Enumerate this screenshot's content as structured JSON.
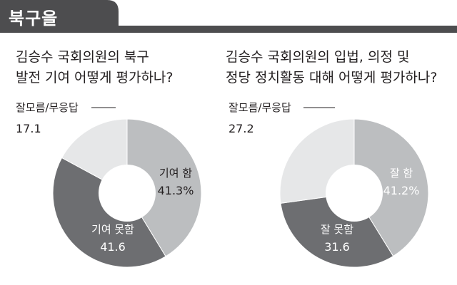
{
  "header": {
    "region": "북구을"
  },
  "chart_data": [
    {
      "type": "pie",
      "title_lines": [
        "김승수 국회의원의 북구",
        "발전 기여 어떻게 평가하나?"
      ],
      "categories": [
        "기여 함",
        "기여 못함",
        "잘모름/무응답"
      ],
      "values": [
        41.3,
        41.6,
        17.1
      ],
      "value_labels": [
        "41.3%",
        "41.6",
        "17.1"
      ],
      "colors": [
        "#bcbec0",
        "#6d6e71",
        "#e6e7e8"
      ],
      "label_colors": [
        "#231f20",
        "#ffffff",
        "#231f20"
      ]
    },
    {
      "type": "pie",
      "title_lines": [
        "김승수 국회의원의 입법, 의정 및",
        "정당 정치활동 대해 어떻게 평가하나?"
      ],
      "categories": [
        "잘 함",
        "잘 못함",
        "잘모름/무응답"
      ],
      "values": [
        41.2,
        31.6,
        27.2
      ],
      "value_labels": [
        "41.2%",
        "31.6",
        "27.2"
      ],
      "colors": [
        "#bcbec0",
        "#6d6e71",
        "#e6e7e8"
      ],
      "label_colors": [
        "#ffffff",
        "#ffffff",
        "#231f20"
      ]
    }
  ]
}
